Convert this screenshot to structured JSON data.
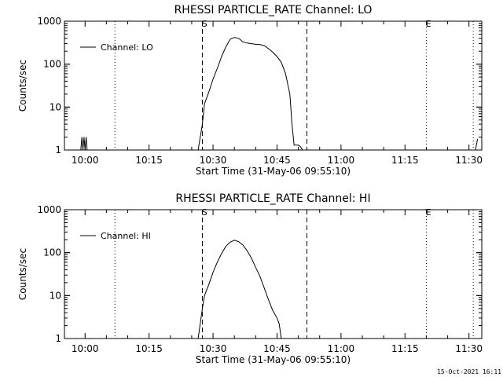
{
  "footer_timestamp": "15-Oct-2021 16:11",
  "chart_data": [
    {
      "type": "line",
      "title": "RHESSI PARTICLE_RATE Channel: LO",
      "xlabel": "Start Time (31-May-06 09:55:10)",
      "ylabel": "Counts/sec",
      "y_scale": "log",
      "ylim": [
        1,
        1000
      ],
      "xlim": [
        "09:55:10",
        "11:33:00"
      ],
      "x_ticks": [
        "10:00",
        "10:15",
        "10:30",
        "10:45",
        "11:00",
        "11:15",
        "11:30"
      ],
      "y_ticks": [
        "1",
        "10",
        "100",
        "1000"
      ],
      "legend": {
        "label": "Channel: LO",
        "placement": "top-left"
      },
      "markers": {
        "dotted": [
          "10:07:00",
          "11:20:00",
          "11:31:00"
        ],
        "dashed": [
          "10:27:30",
          "10:52:00"
        ],
        "labels": [
          {
            "text": "S",
            "at": "10:28:00"
          },
          {
            "text": "E",
            "at": "11:20:30"
          }
        ]
      },
      "series": [
        {
          "name": "Channel: LO",
          "points": [
            [
              "09:59:00",
              1
            ],
            [
              "09:59:15",
              2
            ],
            [
              "09:59:30",
              1
            ],
            [
              "09:59:45",
              2
            ],
            [
              "10:00:00",
              1
            ],
            [
              "10:00:15",
              2
            ],
            [
              "10:00:30",
              1
            ]
          ]
        },
        {
          "name": "Channel: LO",
          "points": [
            [
              "10:26:30",
              1
            ],
            [
              "10:27:30",
              4
            ],
            [
              "10:28:00",
              12
            ],
            [
              "10:29:00",
              22
            ],
            [
              "10:30:00",
              45
            ],
            [
              "10:31:00",
              80
            ],
            [
              "10:32:00",
              150
            ],
            [
              "10:33:00",
              250
            ],
            [
              "10:34:00",
              380
            ],
            [
              "10:35:00",
              420
            ],
            [
              "10:36:00",
              400
            ],
            [
              "10:37:00",
              330
            ],
            [
              "10:38:00",
              310
            ],
            [
              "10:39:00",
              300
            ],
            [
              "10:40:00",
              290
            ],
            [
              "10:41:00",
              285
            ],
            [
              "10:42:00",
              270
            ],
            [
              "10:43:00",
              230
            ],
            [
              "10:44:00",
              190
            ],
            [
              "10:45:00",
              150
            ],
            [
              "10:46:00",
              110
            ],
            [
              "10:47:00",
              60
            ],
            [
              "10:48:00",
              20
            ],
            [
              "10:48:30",
              4
            ],
            [
              "10:49:00",
              1.3
            ],
            [
              "10:50:00",
              1.3
            ],
            [
              "10:50:30",
              1.2
            ],
            [
              "10:51:00",
              1
            ]
          ]
        },
        {
          "name": "Channel: LO",
          "points": [
            [
              "11:31:30",
              1
            ],
            [
              "11:32:00",
              1.8
            ]
          ]
        }
      ]
    },
    {
      "type": "line",
      "title": "RHESSI PARTICLE_RATE Channel: HI",
      "xlabel": "Start Time (31-May-06 09:55:10)",
      "ylabel": "Counts/sec",
      "y_scale": "log",
      "ylim": [
        1,
        1000
      ],
      "xlim": [
        "09:55:10",
        "11:33:00"
      ],
      "x_ticks": [
        "10:00",
        "10:15",
        "10:30",
        "10:45",
        "11:00",
        "11:15",
        "11:30"
      ],
      "y_ticks": [
        "1",
        "10",
        "100",
        "1000"
      ],
      "legend": {
        "label": "Channel: HI",
        "placement": "top-left"
      },
      "markers": {
        "dotted": [
          "10:07:00",
          "11:20:00",
          "11:31:00"
        ],
        "dashed": [
          "10:27:30",
          "10:52:00"
        ],
        "labels": [
          {
            "text": "S",
            "at": "10:28:00"
          },
          {
            "text": "E",
            "at": "11:20:30"
          }
        ]
      },
      "series": [
        {
          "name": "Channel: HI",
          "points": [
            [
              "10:26:30",
              1
            ],
            [
              "10:27:30",
              5
            ],
            [
              "10:28:00",
              10
            ],
            [
              "10:29:00",
              18
            ],
            [
              "10:30:00",
              35
            ],
            [
              "10:31:00",
              60
            ],
            [
              "10:32:00",
              95
            ],
            [
              "10:33:00",
              140
            ],
            [
              "10:34:00",
              175
            ],
            [
              "10:35:00",
              195
            ],
            [
              "10:36:00",
              180
            ],
            [
              "10:37:00",
              150
            ],
            [
              "10:38:00",
              110
            ],
            [
              "10:39:00",
              75
            ],
            [
              "10:40:00",
              45
            ],
            [
              "10:41:00",
              28
            ],
            [
              "10:42:00",
              15
            ],
            [
              "10:43:00",
              8
            ],
            [
              "10:44:00",
              4.5
            ],
            [
              "10:45:00",
              3
            ],
            [
              "10:45:30",
              2.2
            ],
            [
              "10:46:00",
              1
            ]
          ]
        }
      ]
    }
  ]
}
